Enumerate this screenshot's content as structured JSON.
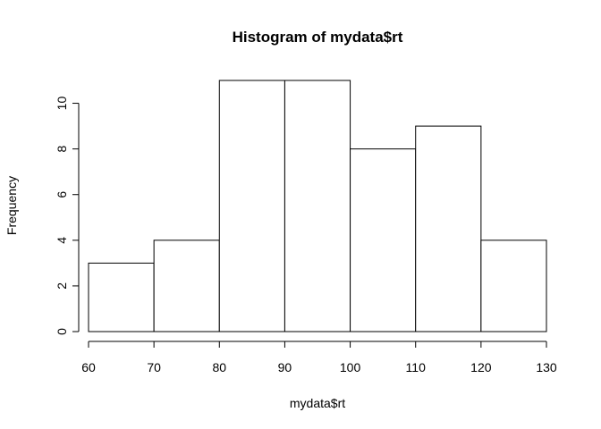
{
  "chart_data": {
    "type": "bar",
    "title": "Histogram of mydata$rt",
    "xlabel": "mydata$rt",
    "ylabel": "Frequency",
    "bins": [
      {
        "from": 60,
        "to": 70,
        "count": 3
      },
      {
        "from": 70,
        "to": 80,
        "count": 4
      },
      {
        "from": 80,
        "to": 90,
        "count": 11
      },
      {
        "from": 90,
        "to": 100,
        "count": 11
      },
      {
        "from": 100,
        "to": 110,
        "count": 8
      },
      {
        "from": 110,
        "to": 120,
        "count": 9
      },
      {
        "from": 120,
        "to": 130,
        "count": 4
      }
    ],
    "xlim": [
      60,
      130
    ],
    "ylim": [
      0,
      11
    ],
    "x_ticks": [
      "60",
      "70",
      "80",
      "90",
      "100",
      "110",
      "120",
      "130"
    ],
    "y_ticks": [
      "0",
      "2",
      "4",
      "6",
      "8",
      "10"
    ],
    "grid": false,
    "bar_fill": "#ffffff",
    "bar_stroke": "#000000"
  }
}
